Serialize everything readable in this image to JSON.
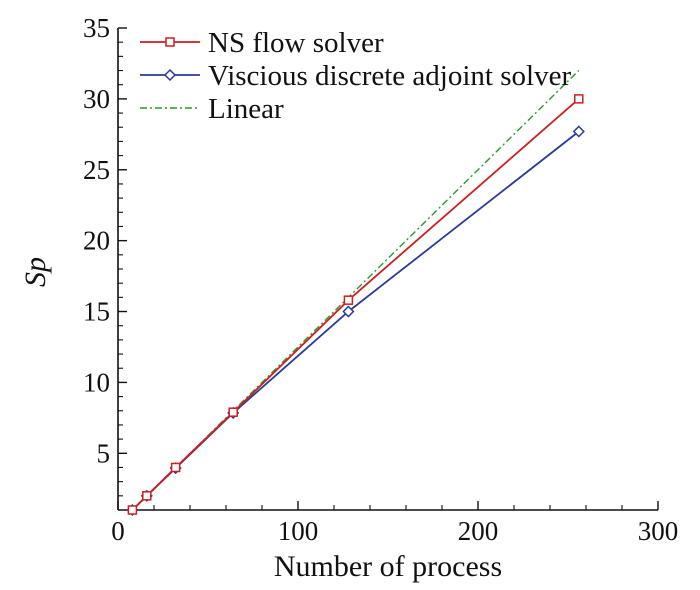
{
  "chart_data": {
    "type": "line",
    "xlabel": "Number of process",
    "ylabel": "Sp",
    "xlim": [
      0,
      300
    ],
    "ylim": [
      1,
      35
    ],
    "x_ticks": [
      0,
      100,
      200,
      300
    ],
    "y_ticks": [
      5,
      10,
      15,
      20,
      25,
      30,
      35
    ],
    "grid": false,
    "legend_position": "top-left",
    "series": [
      {
        "name": "NS flow solver",
        "color": "#cc1f1f",
        "marker": "square",
        "line_style": "solid",
        "x": [
          8,
          16,
          32,
          64,
          128,
          256
        ],
        "y": [
          1,
          2,
          4,
          7.9,
          15.8,
          30
        ]
      },
      {
        "name": "Viscious discrete adjoint solver",
        "color": "#2b3a9a",
        "marker": "diamond",
        "line_style": "solid",
        "x": [
          8,
          16,
          32,
          64,
          128,
          256
        ],
        "y": [
          1,
          2,
          3.95,
          7.85,
          15,
          27.7
        ]
      },
      {
        "name": "Linear",
        "color": "#2a9a2a",
        "marker": "none",
        "line_style": "dash-dot",
        "x": [
          8,
          16,
          32,
          64,
          128,
          256
        ],
        "y": [
          1,
          2,
          4,
          8,
          16,
          32
        ]
      }
    ]
  }
}
